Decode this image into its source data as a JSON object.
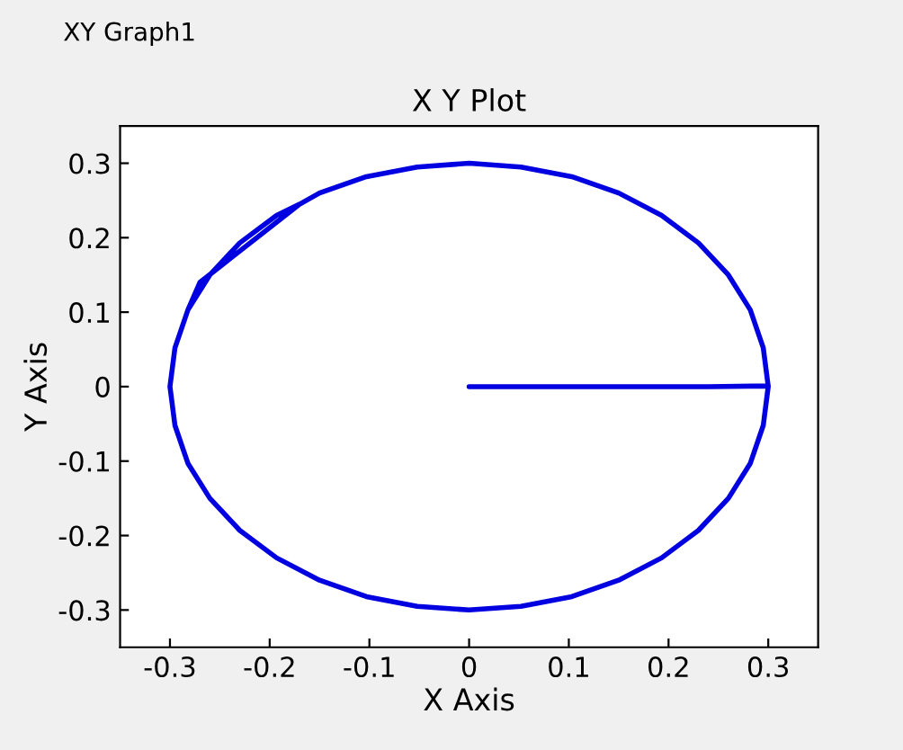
{
  "chart_data": {
    "type": "line",
    "title": "X Y Plot",
    "xlabel": "X Axis",
    "ylabel": "Y Axis",
    "annotations": [
      "XY Graph1"
    ],
    "xlim": [
      -0.35,
      0.35
    ],
    "ylim": [
      -0.35,
      0.35
    ],
    "xticks": [
      -0.3,
      -0.2,
      -0.1,
      0,
      0.1,
      0.2,
      0.3
    ],
    "yticks": [
      -0.3,
      -0.2,
      -0.1,
      0,
      0.1,
      0.2,
      0.3
    ],
    "grid": false,
    "legend": false,
    "series": [
      {
        "color": "#0000e0",
        "x": [
          0,
          0.24,
          0.3,
          0.295,
          0.282,
          0.26,
          0.23,
          0.193,
          0.15,
          0.103,
          0.052,
          0,
          -0.052,
          -0.103,
          -0.15,
          -0.193,
          -0.23,
          -0.26,
          -0.282,
          -0.295,
          -0.3,
          -0.295,
          -0.282,
          -0.27,
          -0.17,
          -0.15,
          -0.103,
          -0.052,
          0,
          0.052,
          0.103,
          0.15,
          0.193,
          0.23,
          0.26,
          0.282,
          0.295,
          0.3,
          0.295,
          0.282,
          0.26,
          0.23,
          0.193,
          0.15,
          0.103,
          0.052,
          0,
          -0.052,
          -0.103,
          -0.15,
          -0.193,
          -0.23,
          -0.26,
          -0.282,
          -0.295,
          -0.3,
          -0.295,
          -0.282,
          -0.26,
          -0.23,
          -0.193,
          -0.17
        ],
        "values": [
          0,
          0,
          0.001,
          -0.052,
          -0.103,
          -0.15,
          -0.193,
          -0.23,
          -0.26,
          -0.282,
          -0.295,
          -0.3,
          -0.295,
          -0.282,
          -0.26,
          -0.23,
          -0.193,
          -0.15,
          -0.103,
          -0.052,
          0,
          0.052,
          0.103,
          0.14,
          0.245,
          0.26,
          0.282,
          0.295,
          0.3,
          0.295,
          0.282,
          0.26,
          0.23,
          0.193,
          0.15,
          0.103,
          0.052,
          0,
          -0.052,
          -0.103,
          -0.15,
          -0.193,
          -0.23,
          -0.26,
          -0.282,
          -0.295,
          -0.3,
          -0.295,
          -0.282,
          -0.26,
          -0.23,
          -0.193,
          -0.15,
          -0.103,
          -0.052,
          0,
          0.052,
          0.103,
          0.15,
          0.193,
          0.23,
          0.245
        ]
      }
    ]
  }
}
